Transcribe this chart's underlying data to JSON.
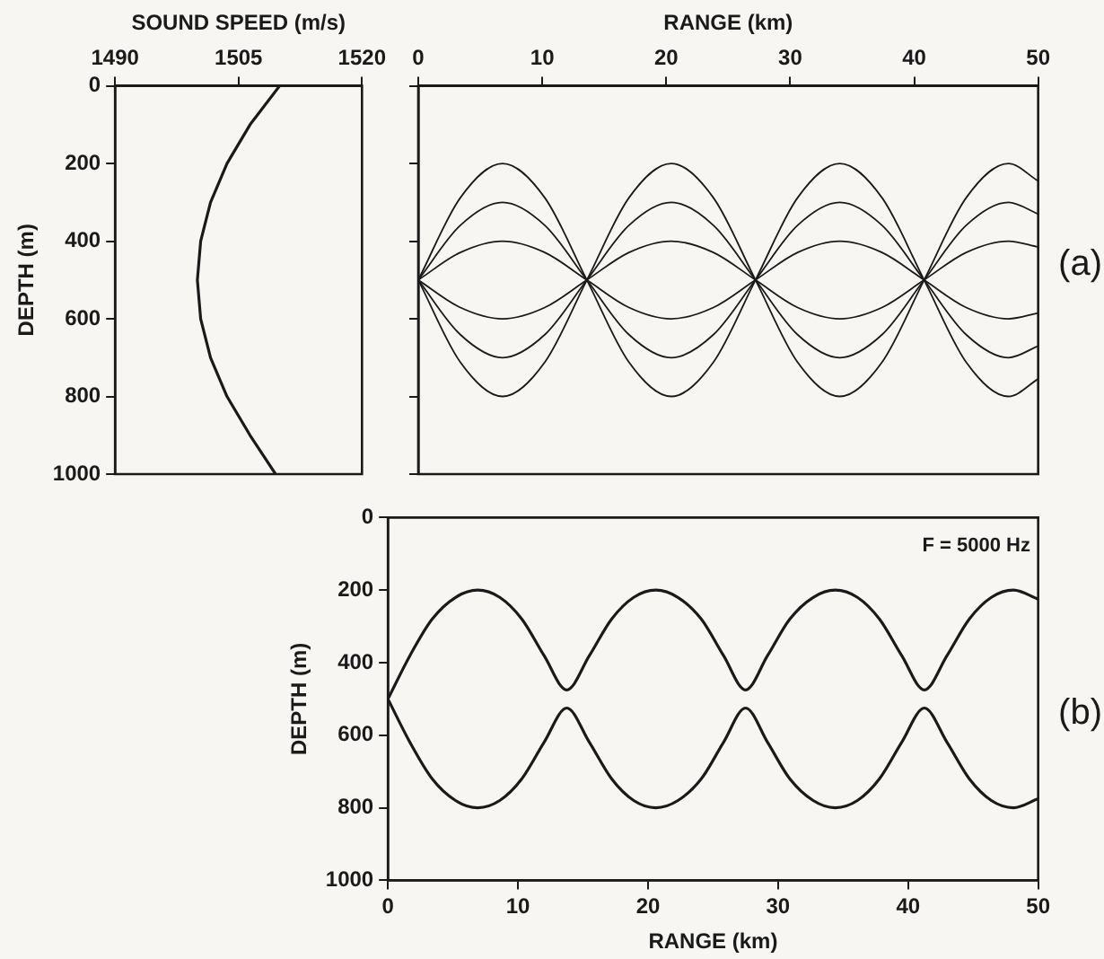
{
  "chart_data": [
    {
      "type": "line",
      "xlabel": "SOUND SPEED (m/s)",
      "ylabel": "DEPTH (m)",
      "xlim": [
        1490,
        1520
      ],
      "xticks": [
        1490,
        1505,
        1520
      ],
      "ylim": [
        1000,
        0
      ],
      "yticks": [
        0,
        200,
        400,
        600,
        800,
        1000
      ],
      "grid": false,
      "line_style": "solid",
      "x": [
        1510,
        1506.4,
        1503.6,
        1501.6,
        1500.4,
        1500,
        1500.4,
        1501.6,
        1503.6,
        1506.4,
        1509.5
      ],
      "series": [
        {
          "color": "#1a1a1a",
          "values": [
            0,
            100,
            200,
            300,
            400,
            500,
            600,
            700,
            800,
            900,
            1000
          ]
        }
      ]
    },
    {
      "type": "line",
      "xlabel": "RANGE (km)",
      "xlim": [
        0,
        50
      ],
      "xticks": [
        0,
        10,
        20,
        30,
        40,
        50
      ],
      "ylim": [
        1000,
        0
      ],
      "yticks": [
        0,
        200,
        400,
        600,
        800,
        1000
      ],
      "tick_labels": "x",
      "grid": false,
      "line_style": "solid",
      "annotations": [
        "(a)"
      ],
      "x": [
        0,
        3.4,
        6.8,
        10.2,
        13.6,
        17,
        20.4,
        23.8,
        27.2,
        30.6,
        34,
        37.4,
        40.8,
        44.2,
        47.6,
        50
      ],
      "series": [
        {
          "color": "#1a1a1a",
          "values": [
            500,
            288,
            200,
            288,
            500,
            712,
            800,
            712,
            500,
            288,
            200,
            288,
            500,
            712,
            800,
            755
          ]
        },
        {
          "color": "#1a1a1a",
          "values": [
            500,
            712,
            800,
            712,
            500,
            288,
            200,
            288,
            500,
            712,
            800,
            712,
            500,
            288,
            200,
            245
          ]
        },
        {
          "color": "#1a1a1a",
          "values": [
            500,
            359,
            300,
            359,
            500,
            641,
            700,
            641,
            500,
            359,
            300,
            359,
            500,
            641,
            700,
            670
          ]
        },
        {
          "color": "#1a1a1a",
          "values": [
            500,
            641,
            700,
            641,
            500,
            359,
            300,
            359,
            500,
            641,
            700,
            641,
            500,
            359,
            300,
            330
          ]
        },
        {
          "color": "#1a1a1a",
          "values": [
            500,
            429,
            400,
            429,
            500,
            571,
            600,
            571,
            500,
            429,
            400,
            429,
            500,
            571,
            600,
            585
          ]
        },
        {
          "color": "#1a1a1a",
          "values": [
            500,
            571,
            600,
            571,
            500,
            429,
            400,
            429,
            500,
            571,
            600,
            571,
            500,
            429,
            400,
            415
          ]
        }
      ]
    },
    {
      "type": "line",
      "xlabel": "RANGE (km)",
      "ylabel": "DEPTH (m)",
      "xlim": [
        0,
        50
      ],
      "xticks": [
        0,
        10,
        20,
        30,
        40,
        50
      ],
      "ylim": [
        1000,
        0
      ],
      "yticks": [
        0,
        200,
        400,
        600,
        800,
        1000
      ],
      "grid": false,
      "line_style": "solid",
      "annotations": [
        "F = 5000 Hz",
        "(b)"
      ],
      "x": [
        0,
        1.7,
        3.4,
        5.2,
        6.9,
        8.6,
        10.3,
        12,
        13.75,
        15.5,
        17.2,
        18.9,
        20.6,
        22.3,
        24.1,
        25.8,
        27.5,
        29.2,
        30.9,
        32.7,
        34.4,
        36.1,
        37.8,
        39.5,
        41.25,
        43,
        44.7,
        46.4,
        48.1,
        50
      ],
      "series": [
        {
          "color": "#1a1a1a",
          "values": [
            500,
            380,
            280,
            220,
            200,
            220,
            280,
            380,
            475,
            380,
            280,
            220,
            200,
            220,
            280,
            380,
            475,
            380,
            280,
            220,
            200,
            220,
            280,
            380,
            475,
            380,
            280,
            220,
            200,
            225
          ]
        },
        {
          "color": "#1a1a1a",
          "values": [
            500,
            620,
            720,
            780,
            800,
            780,
            720,
            620,
            525,
            620,
            720,
            780,
            800,
            780,
            720,
            620,
            525,
            620,
            720,
            780,
            800,
            780,
            720,
            620,
            525,
            620,
            720,
            780,
            800,
            775
          ]
        }
      ]
    }
  ]
}
